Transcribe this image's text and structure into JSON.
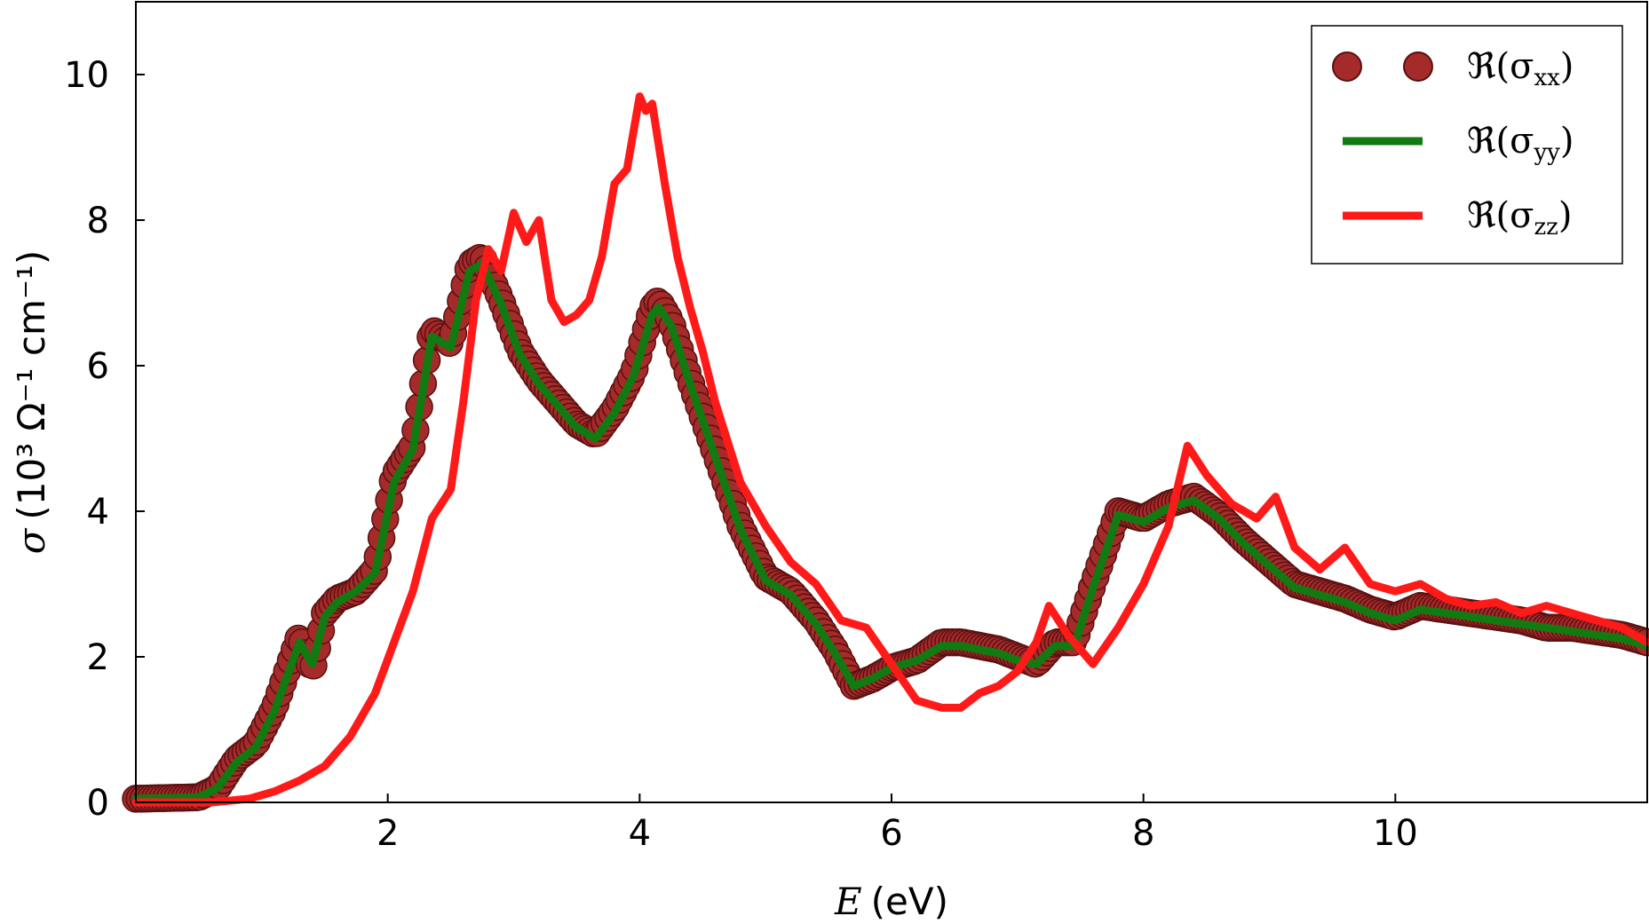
{
  "chart_data": {
    "type": "line",
    "xlabel_var": "E",
    "xlabel_unit": "(eV)",
    "ylabel_var": "σ",
    "ylabel_rest": "(10³ Ω⁻¹ cm⁻¹)",
    "xlim": [
      0,
      12
    ],
    "ylim": [
      0,
      11
    ],
    "xticks": [
      2,
      4,
      6,
      8,
      10
    ],
    "yticks": [
      0,
      2,
      4,
      6,
      8,
      10
    ],
    "legend_position": "top-right",
    "series": [
      {
        "name": "ℜ(σxx)",
        "legend_main": "ℜ(σ",
        "legend_sub": "xx",
        "legend_close": ")",
        "style": "markers",
        "color": "#a52a2a",
        "edge_color": "#5a1010",
        "x": [
          0.0,
          0.5,
          0.65,
          0.8,
          0.95,
          1.1,
          1.3,
          1.4,
          1.5,
          1.6,
          1.75,
          1.9,
          2.05,
          2.2,
          2.35,
          2.5,
          2.65,
          2.75,
          2.9,
          3.05,
          3.2,
          3.35,
          3.5,
          3.65,
          3.8,
          3.95,
          4.1,
          4.15,
          4.25,
          4.4,
          4.6,
          4.8,
          5.0,
          5.2,
          5.4,
          5.55,
          5.7,
          5.85,
          6.0,
          6.2,
          6.4,
          6.55,
          6.7,
          6.85,
          7.0,
          7.15,
          7.3,
          7.45,
          7.6,
          7.8,
          8.0,
          8.2,
          8.4,
          8.6,
          8.8,
          9.0,
          9.2,
          9.4,
          9.6,
          9.8,
          10.0,
          10.2,
          10.4,
          10.6,
          10.8,
          11.0,
          11.2,
          11.4,
          11.6,
          11.8,
          12.0
        ],
        "y": [
          0.05,
          0.07,
          0.2,
          0.6,
          0.8,
          1.3,
          2.3,
          1.8,
          2.6,
          2.8,
          2.9,
          3.2,
          4.5,
          4.9,
          6.5,
          6.3,
          7.4,
          7.5,
          6.9,
          6.2,
          5.8,
          5.5,
          5.2,
          5.05,
          5.4,
          5.9,
          6.8,
          6.9,
          6.6,
          5.8,
          4.8,
          3.8,
          3.1,
          2.9,
          2.5,
          2.1,
          1.6,
          1.7,
          1.85,
          1.95,
          2.2,
          2.2,
          2.15,
          2.1,
          2.0,
          1.9,
          2.2,
          2.2,
          3.0,
          4.0,
          3.9,
          4.1,
          4.2,
          3.95,
          3.6,
          3.3,
          3.0,
          2.9,
          2.8,
          2.65,
          2.55,
          2.7,
          2.65,
          2.6,
          2.55,
          2.5,
          2.4,
          2.4,
          2.35,
          2.3,
          2.2
        ]
      },
      {
        "name": "ℜ(σyy)",
        "legend_main": "ℜ(σ",
        "legend_sub": "yy",
        "legend_close": ")",
        "style": "line",
        "color": "#117a11",
        "x": [
          0.0,
          0.5,
          0.65,
          0.8,
          0.95,
          1.1,
          1.3,
          1.4,
          1.5,
          1.6,
          1.75,
          1.9,
          2.05,
          2.2,
          2.35,
          2.5,
          2.65,
          2.75,
          2.9,
          3.05,
          3.2,
          3.35,
          3.5,
          3.65,
          3.8,
          3.95,
          4.1,
          4.15,
          4.25,
          4.4,
          4.6,
          4.8,
          5.0,
          5.2,
          5.4,
          5.55,
          5.7,
          5.85,
          6.0,
          6.2,
          6.4,
          6.55,
          6.7,
          6.85,
          7.0,
          7.15,
          7.3,
          7.45,
          7.6,
          7.8,
          8.0,
          8.2,
          8.4,
          8.6,
          8.8,
          9.0,
          9.2,
          9.4,
          9.6,
          9.8,
          10.0,
          10.2,
          10.4,
          10.6,
          10.8,
          11.0,
          11.2,
          11.4,
          11.6,
          11.8,
          12.0
        ],
        "y": [
          0.05,
          0.07,
          0.2,
          0.55,
          0.75,
          1.25,
          2.2,
          1.9,
          2.55,
          2.75,
          2.9,
          3.15,
          4.4,
          4.85,
          6.4,
          6.25,
          7.3,
          7.4,
          6.85,
          6.15,
          5.75,
          5.45,
          5.15,
          5.0,
          5.35,
          5.85,
          6.7,
          6.8,
          6.55,
          5.75,
          4.75,
          3.75,
          3.05,
          2.85,
          2.45,
          2.05,
          1.6,
          1.7,
          1.85,
          1.95,
          2.15,
          2.15,
          2.1,
          2.05,
          1.95,
          1.9,
          2.15,
          2.15,
          2.95,
          3.95,
          3.85,
          4.05,
          4.15,
          3.9,
          3.55,
          3.25,
          2.95,
          2.85,
          2.75,
          2.6,
          2.5,
          2.65,
          2.6,
          2.55,
          2.5,
          2.45,
          2.4,
          2.35,
          2.3,
          2.25,
          2.15
        ]
      },
      {
        "name": "ℜ(σzz)",
        "legend_main": "ℜ(σ",
        "legend_sub": "zz",
        "legend_close": ")",
        "style": "line",
        "color": "#ff1a1a",
        "x": [
          0.0,
          0.6,
          0.9,
          1.1,
          1.3,
          1.5,
          1.7,
          1.9,
          2.05,
          2.2,
          2.35,
          2.5,
          2.6,
          2.7,
          2.8,
          2.9,
          3.0,
          3.1,
          3.2,
          3.3,
          3.4,
          3.5,
          3.6,
          3.7,
          3.8,
          3.9,
          4.0,
          4.05,
          4.1,
          4.2,
          4.3,
          4.4,
          4.5,
          4.6,
          4.8,
          5.0,
          5.2,
          5.4,
          5.6,
          5.8,
          6.0,
          6.2,
          6.4,
          6.55,
          6.7,
          6.85,
          7.0,
          7.15,
          7.25,
          7.4,
          7.6,
          7.8,
          8.0,
          8.2,
          8.35,
          8.5,
          8.7,
          8.9,
          9.05,
          9.2,
          9.4,
          9.6,
          9.8,
          10.0,
          10.2,
          10.4,
          10.6,
          10.8,
          11.0,
          11.2,
          11.4,
          11.6,
          11.8,
          12.0
        ],
        "y": [
          0.0,
          0.0,
          0.05,
          0.15,
          0.3,
          0.5,
          0.9,
          1.5,
          2.2,
          2.9,
          3.9,
          4.3,
          5.5,
          6.9,
          7.6,
          7.3,
          8.1,
          7.7,
          8.0,
          6.9,
          6.6,
          6.7,
          6.9,
          7.5,
          8.5,
          8.7,
          9.7,
          9.5,
          9.6,
          8.5,
          7.5,
          6.8,
          6.2,
          5.5,
          4.4,
          3.8,
          3.3,
          3.0,
          2.5,
          2.4,
          1.9,
          1.4,
          1.3,
          1.3,
          1.5,
          1.6,
          1.8,
          2.2,
          2.7,
          2.3,
          1.9,
          2.4,
          3.0,
          3.8,
          4.9,
          4.5,
          4.1,
          3.9,
          4.2,
          3.5,
          3.2,
          3.5,
          3.0,
          2.9,
          3.0,
          2.8,
          2.7,
          2.75,
          2.6,
          2.7,
          2.6,
          2.5,
          2.4,
          2.2
        ]
      }
    ]
  }
}
